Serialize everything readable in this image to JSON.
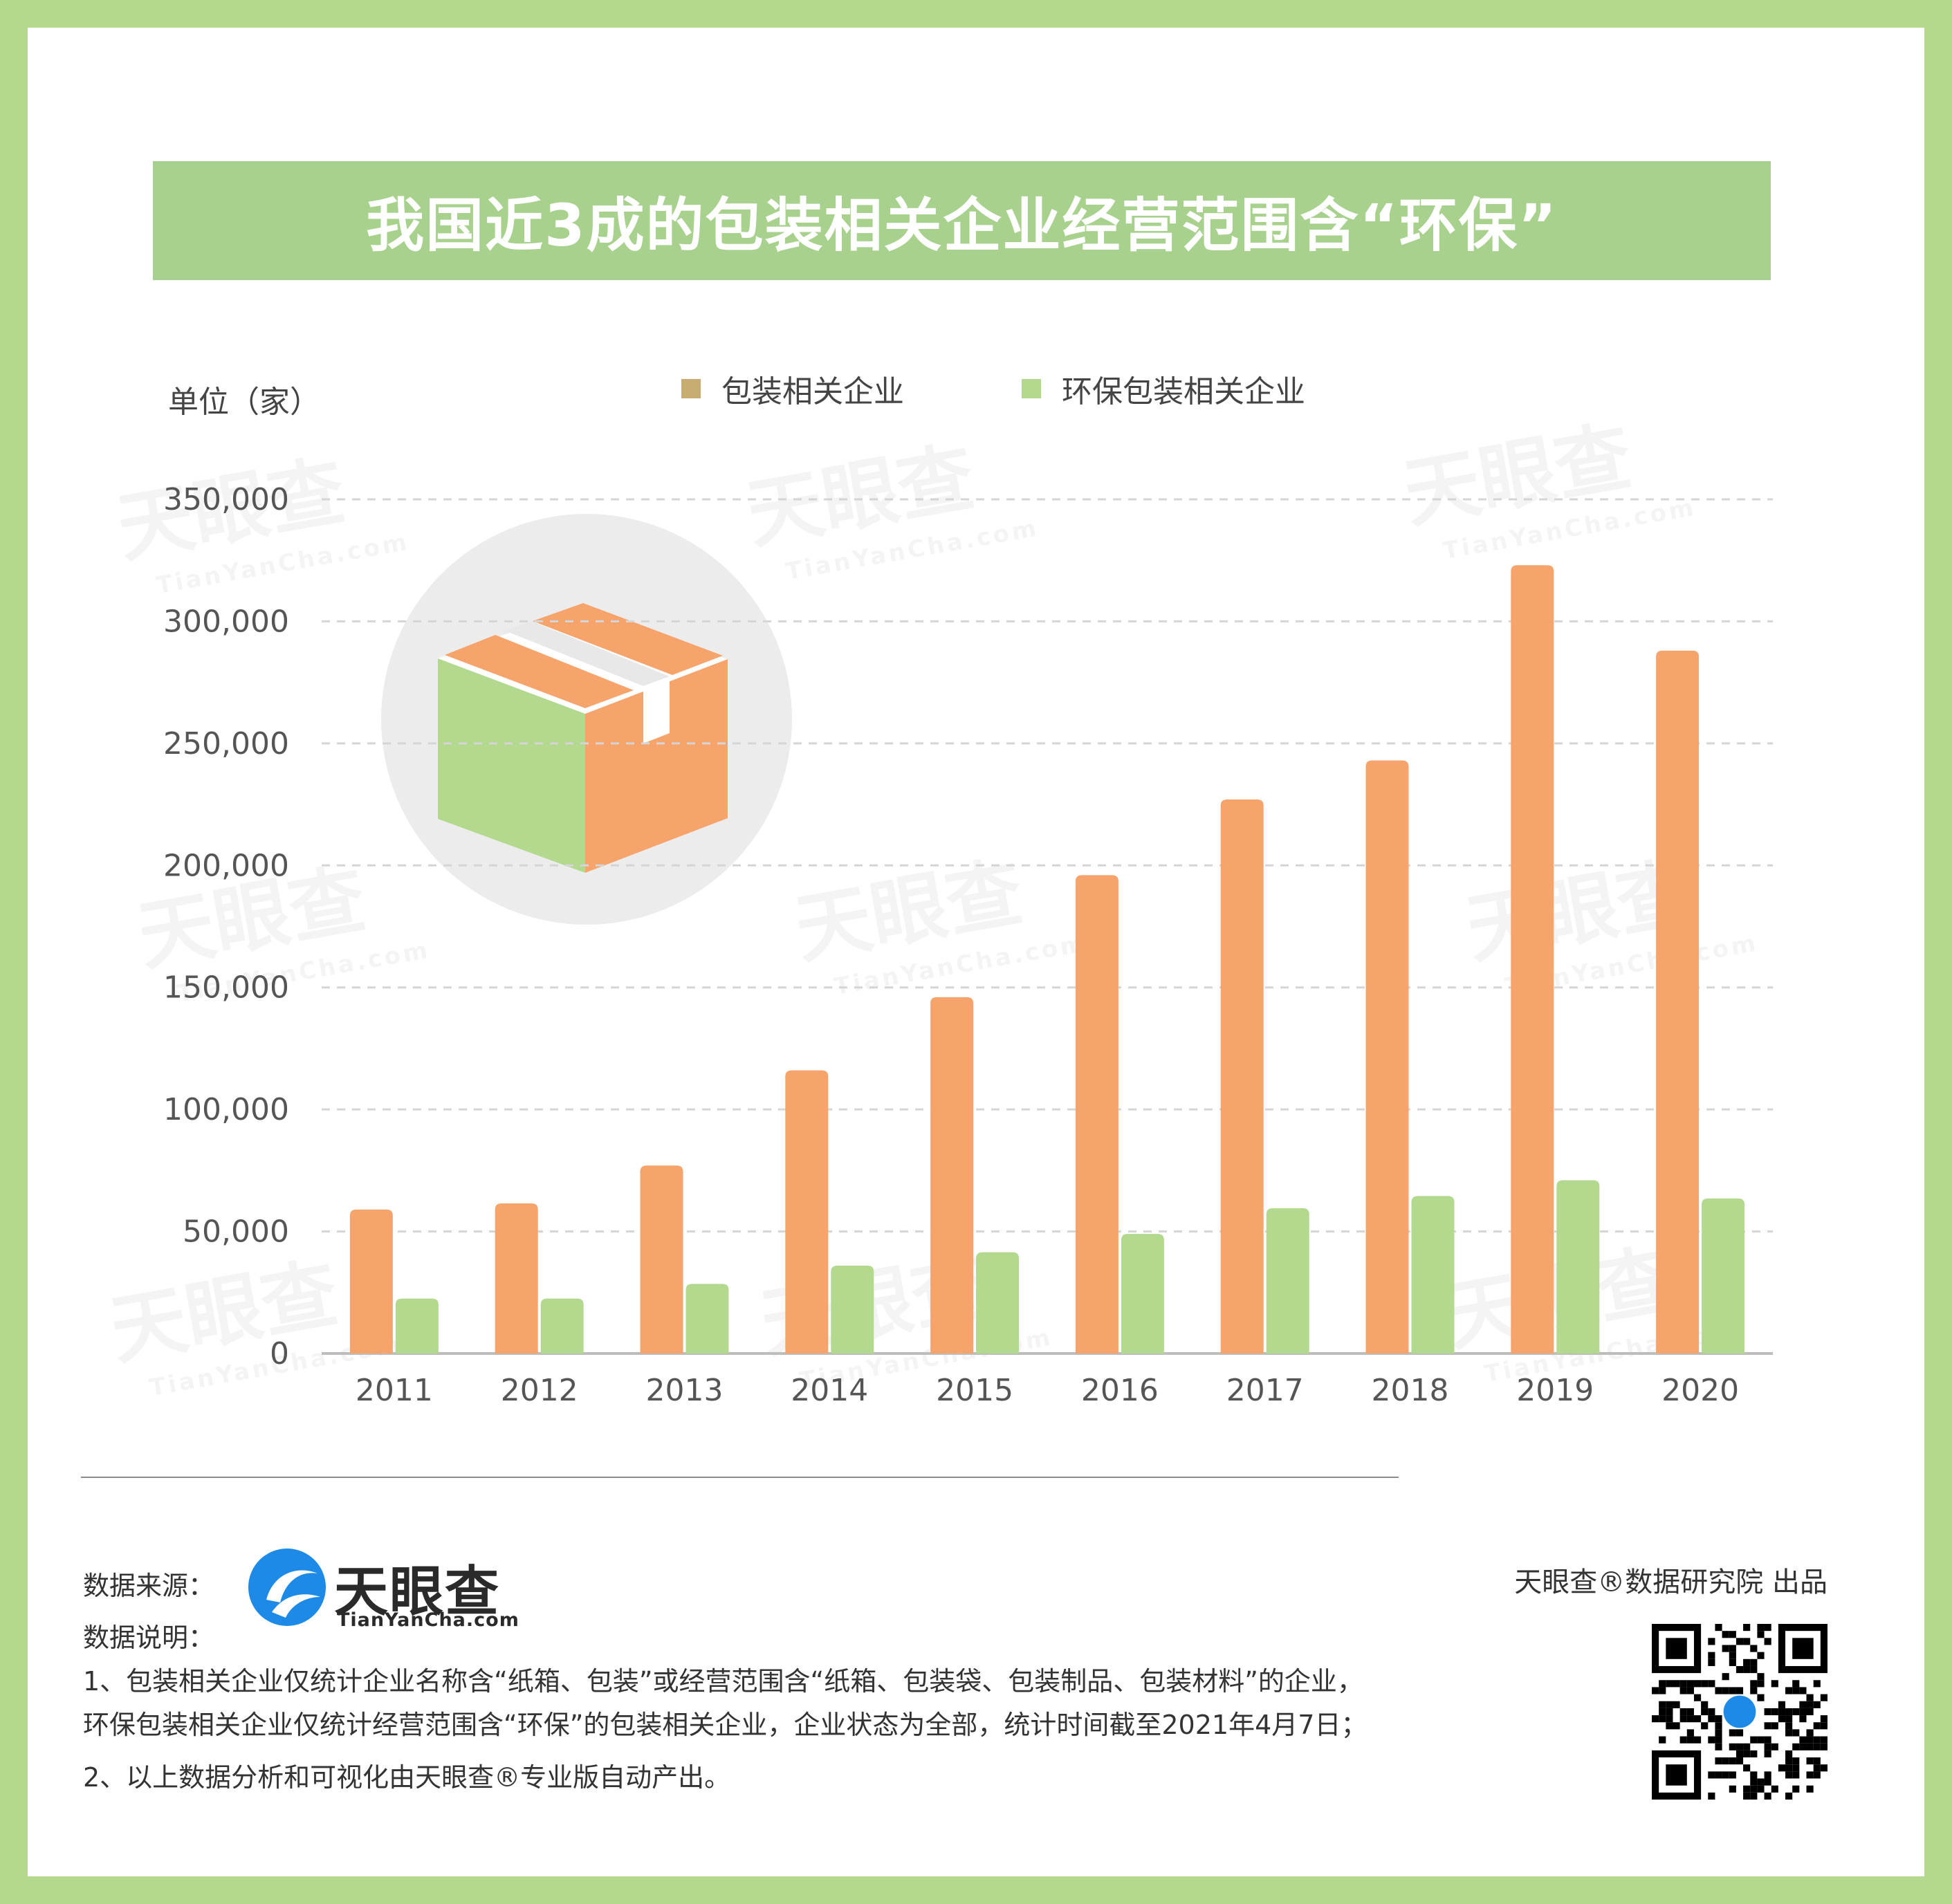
{
  "title": "我国近3成的包装相关企业经营范围含“环保”",
  "unit_label": "单位（家）",
  "legend": [
    {
      "label": "包装相关企业",
      "color": "#c8ad72"
    },
    {
      "label": "环保包装相关企业",
      "color": "#b3d98f"
    }
  ],
  "colors": {
    "frame": "#b3d98f",
    "banner": "#a9d18e",
    "bar_orange": "#f7a46c",
    "bar_green": "#b3d98f",
    "grid": "#d5d5d5"
  },
  "chart_data": {
    "type": "bar",
    "categories": [
      "2011",
      "2012",
      "2013",
      "2014",
      "2015",
      "2016",
      "2017",
      "2018",
      "2019",
      "2020"
    ],
    "series": [
      {
        "name": "包装相关企业",
        "values": [
          59000,
          61500,
          77000,
          116000,
          146000,
          196000,
          227000,
          243000,
          323000,
          288000
        ]
      },
      {
        "name": "环保包装相关企业",
        "values": [
          22500,
          22500,
          28500,
          36000,
          41500,
          49000,
          59500,
          64500,
          71000,
          63500
        ]
      }
    ],
    "yticks": [
      "0",
      "50,000",
      "100,000",
      "150,000",
      "200,000",
      "250,000",
      "300,000",
      "350,000"
    ],
    "ylim": [
      0,
      350000
    ],
    "grid": true,
    "legend_position": "top-center"
  },
  "footer": {
    "source_label": "数据来源：",
    "logo_name": "天眼查",
    "logo_domain": "TianYanCha.com",
    "notes_title": "数据说明：",
    "note1_line1": "1、包装相关企业仅统计企业名称含“纸箱、包装”或经营范围含“纸箱、包装袋、包装制品、包装材料”的企业，",
    "note1_line2": "环保包装相关企业仅统计经营范围含“环保”的包装相关企业，企业状态为全部，统计时间截至2021年4月7日；",
    "note2": "2、以上数据分析和可视化由天眼查®专业版自动产出。",
    "producer": "天眼查®数据研究院 出品"
  },
  "watermark": {
    "main": "天眼查",
    "sub": "TianYanCha.com"
  },
  "icons": {
    "illustration": "package-box-icon",
    "logo": "tianyancha-logo-icon",
    "qr": "qr-code-icon"
  }
}
